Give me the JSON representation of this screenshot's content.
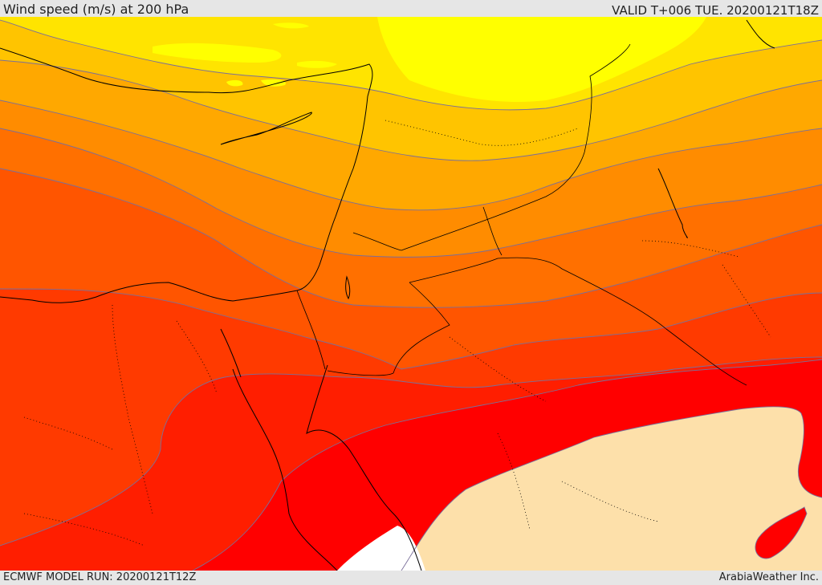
{
  "header": {
    "title": "Wind speed (m/s) at 200 hPa",
    "valid": "VALID T+006 TUE. 20200121T18Z"
  },
  "footer": {
    "model_run": "ECMWF MODEL RUN: 20200121T12Z",
    "credit": "ArabiaWeather Inc."
  },
  "colors": {
    "band_1": "#ffff00",
    "band_2": "#ffe400",
    "band_3": "#ffc400",
    "band_4": "#ffa800",
    "band_5": "#ff8c00",
    "band_6": "#ff7000",
    "band_7": "#ff5500",
    "band_8": "#ff3a00",
    "band_9": "#ff1e00",
    "band_10": "#ff0000",
    "band_low": "#fde0aa",
    "land_white": "#ffffff",
    "contour_line": "#7a6f9a",
    "coastline": "#000000"
  }
}
